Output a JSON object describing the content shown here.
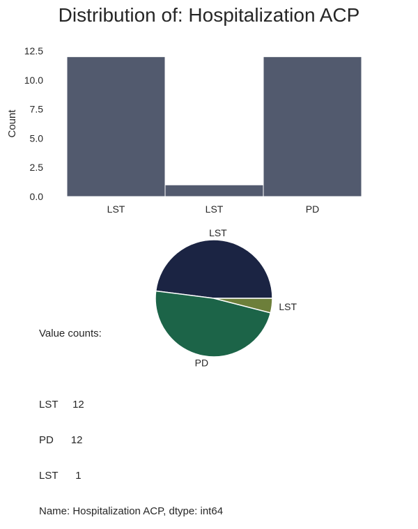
{
  "title": "Distribution of: Hospitalization ACP",
  "chart_data": [
    {
      "type": "bar",
      "categories": [
        "LST",
        "LST",
        "PD"
      ],
      "values": [
        12,
        1,
        12
      ],
      "ylabel": "Count",
      "xlabel": "",
      "ylim": [
        0,
        12.5
      ],
      "yticks": [
        0.0,
        2.5,
        5.0,
        7.5,
        10.0,
        12.5
      ],
      "ytick_labels": [
        "0.0",
        "2.5",
        "5.0",
        "7.5",
        "10.0",
        "12.5"
      ],
      "grid": false,
      "color": "#525a6e"
    },
    {
      "type": "pie",
      "labels": [
        "LST",
        "PD",
        "LST"
      ],
      "values": [
        12,
        12,
        1
      ],
      "colors": [
        "#1b2443",
        "#1c6448",
        "#6d7f3a"
      ]
    }
  ],
  "value_counts": {
    "header": "Value counts:",
    "rows": [
      "LST     12",
      "PD      12",
      "LST      1"
    ],
    "footer": "Name: Hospitalization ACP, dtype: int64"
  }
}
